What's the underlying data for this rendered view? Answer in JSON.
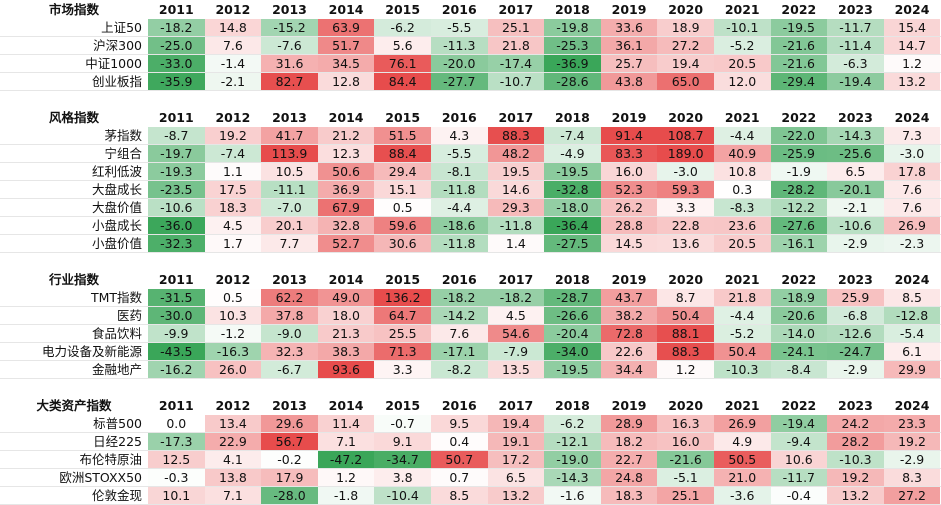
{
  "years": [
    "2011",
    "2012",
    "2013",
    "2014",
    "2015",
    "2016",
    "2017",
    "2018",
    "2019",
    "2020",
    "2021",
    "2022",
    "2023",
    "2024"
  ],
  "colors": {
    "positive": "#e74c4c",
    "negative": "#3aa659",
    "neutral": "#ffffff"
  },
  "sections": [
    {
      "title": "市场指数",
      "rows": [
        {
          "label": "上证50",
          "values": [
            -18.2,
            14.8,
            -15.2,
            63.9,
            -6.2,
            -5.5,
            25.1,
            -19.8,
            33.6,
            18.9,
            -10.1,
            -19.5,
            -11.7,
            15.4
          ]
        },
        {
          "label": "沪深300",
          "values": [
            -25.0,
            7.6,
            -7.6,
            51.7,
            5.6,
            -11.3,
            21.8,
            -25.3,
            36.1,
            27.2,
            -5.2,
            -21.6,
            -11.4,
            14.7
          ]
        },
        {
          "label": "中证1000",
          "values": [
            -33.0,
            -1.4,
            31.6,
            34.5,
            76.1,
            -20.0,
            -17.4,
            -36.9,
            25.7,
            19.4,
            20.5,
            -21.6,
            -6.3,
            1.2
          ]
        },
        {
          "label": "创业板指",
          "values": [
            -35.9,
            -2.1,
            82.7,
            12.8,
            84.4,
            -27.7,
            -10.7,
            -28.6,
            43.8,
            65.0,
            12.0,
            -29.4,
            -19.4,
            13.2
          ]
        }
      ]
    },
    {
      "title": "风格指数",
      "rows": [
        {
          "label": "茅指数",
          "values": [
            -8.7,
            19.2,
            41.7,
            21.2,
            51.5,
            4.3,
            88.3,
            -7.4,
            91.4,
            108.7,
            -4.4,
            -22.0,
            -14.3,
            7.3
          ]
        },
        {
          "label": "宁组合",
          "values": [
            -19.7,
            -7.4,
            113.9,
            12.3,
            88.4,
            -5.5,
            48.2,
            -4.9,
            83.3,
            189.0,
            40.9,
            -25.9,
            -25.6,
            -3.0
          ]
        },
        {
          "label": "红利低波",
          "values": [
            -19.3,
            1.1,
            10.5,
            50.6,
            29.4,
            -8.1,
            19.5,
            -19.5,
            16.0,
            -3.0,
            10.8,
            -1.9,
            6.5,
            17.8
          ]
        },
        {
          "label": "大盘成长",
          "values": [
            -23.5,
            17.5,
            -11.1,
            36.9,
            15.1,
            -11.8,
            14.6,
            -32.8,
            52.3,
            59.3,
            0.3,
            -28.2,
            -20.1,
            7.6
          ]
        },
        {
          "label": "大盘价值",
          "values": [
            -10.6,
            18.3,
            -7.0,
            67.9,
            0.5,
            -4.4,
            29.3,
            -18.0,
            26.2,
            3.3,
            -8.3,
            -12.2,
            -2.1,
            7.6
          ]
        },
        {
          "label": "小盘成长",
          "values": [
            -36.0,
            4.5,
            20.1,
            32.8,
            59.6,
            -18.6,
            -11.8,
            -36.4,
            28.8,
            22.8,
            23.6,
            -27.6,
            -10.6,
            26.9
          ]
        },
        {
          "label": "小盘价值",
          "values": [
            -32.3,
            1.7,
            7.7,
            52.7,
            30.6,
            -11.8,
            1.4,
            -27.5,
            14.5,
            13.6,
            20.5,
            -16.1,
            -2.9,
            -2.3
          ]
        }
      ]
    },
    {
      "title": "行业指数",
      "rows": [
        {
          "label": "TMT指数",
          "values": [
            -31.5,
            0.5,
            62.2,
            49.0,
            136.2,
            -18.2,
            -18.2,
            -28.7,
            43.7,
            8.7,
            21.8,
            -18.9,
            25.9,
            8.5
          ]
        },
        {
          "label": "医药",
          "values": [
            -30.0,
            10.3,
            37.8,
            18.0,
            64.7,
            -14.2,
            4.5,
            -26.6,
            38.2,
            50.4,
            -4.4,
            -20.6,
            -6.8,
            -12.8
          ]
        },
        {
          "label": "食品饮料",
          "values": [
            -9.9,
            -1.2,
            -9.0,
            21.3,
            25.5,
            7.6,
            54.6,
            -20.4,
            72.8,
            88.1,
            -5.2,
            -14.0,
            -12.6,
            -5.4
          ]
        },
        {
          "label": "电力设备及新能源",
          "values": [
            -43.5,
            -16.3,
            32.3,
            38.3,
            71.3,
            -17.1,
            -7.9,
            -34.0,
            22.6,
            88.3,
            50.4,
            -24.1,
            -24.7,
            6.1
          ]
        },
        {
          "label": "金融地产",
          "values": [
            -16.2,
            26.0,
            -6.7,
            93.6,
            3.3,
            -8.2,
            13.5,
            -19.5,
            34.4,
            1.2,
            -10.3,
            -8.4,
            -2.9,
            29.9
          ]
        }
      ]
    },
    {
      "title": "大类资产指数",
      "rows": [
        {
          "label": "标普500",
          "values": [
            0.0,
            13.4,
            29.6,
            11.4,
            -0.7,
            9.5,
            19.4,
            -6.2,
            28.9,
            16.3,
            26.9,
            -19.4,
            24.2,
            23.3
          ]
        },
        {
          "label": "日经225",
          "values": [
            -17.3,
            22.9,
            56.7,
            7.1,
            9.1,
            0.4,
            19.1,
            -12.1,
            18.2,
            16.0,
            4.9,
            -9.4,
            28.2,
            19.2
          ]
        },
        {
          "label": "布伦特原油",
          "values": [
            12.5,
            4.1,
            -0.2,
            -47.2,
            -34.7,
            50.7,
            17.2,
            -19.0,
            22.7,
            -21.6,
            50.5,
            10.6,
            -10.3,
            -2.9
          ]
        },
        {
          "label": "欧洲STOXX50",
          "values": [
            -0.3,
            13.8,
            17.9,
            1.2,
            3.8,
            0.7,
            6.5,
            -14.3,
            24.8,
            -5.1,
            21.0,
            -11.7,
            19.2,
            8.3
          ]
        },
        {
          "label": "伦敦金现",
          "values": [
            10.1,
            7.1,
            -28.0,
            -1.8,
            -10.4,
            8.5,
            13.2,
            -1.6,
            18.3,
            25.1,
            -3.6,
            -0.4,
            13.2,
            27.2
          ]
        }
      ]
    }
  ]
}
